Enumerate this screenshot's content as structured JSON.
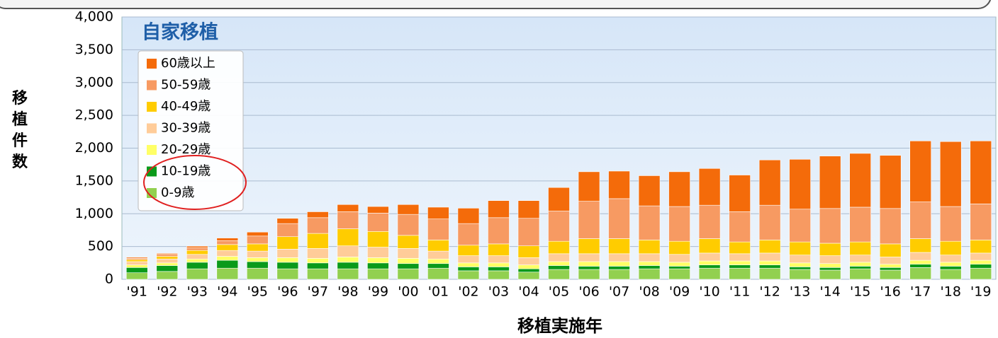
{
  "chart_data": {
    "type": "stacked_bar",
    "title": "自家移植",
    "y_label": "移植件数",
    "x_label": "移植実施年",
    "categories": [
      "'91",
      "'92",
      "'93",
      "'94",
      "'95",
      "'96",
      "'97",
      "'98",
      "'99",
      "'00",
      "'01",
      "'02",
      "'03",
      "'04",
      "'05",
      "'06",
      "'07",
      "'08",
      "'09",
      "'10",
      "'11",
      "'12",
      "'13",
      "'14",
      "'15",
      "'16",
      "'17",
      "'18",
      "'19"
    ],
    "series": [
      {
        "name": "0-9歳",
        "color": "#92d050",
        "values": [
          100,
          120,
          160,
          170,
          170,
          160,
          160,
          160,
          160,
          160,
          170,
          130,
          130,
          110,
          150,
          150,
          150,
          160,
          160,
          170,
          170,
          170,
          150,
          140,
          160,
          140,
          180,
          150,
          170
        ]
      },
      {
        "name": "10-19歳",
        "color": "#0a9a1a",
        "values": [
          80,
          90,
          100,
          120,
          100,
          100,
          90,
          100,
          90,
          80,
          70,
          60,
          60,
          50,
          60,
          50,
          50,
          50,
          40,
          50,
          50,
          50,
          40,
          40,
          40,
          40,
          50,
          50,
          60
        ]
      },
      {
        "name": "20-29歳",
        "color": "#ffff66",
        "values": [
          40,
          40,
          50,
          60,
          60,
          70,
          70,
          80,
          80,
          80,
          70,
          60,
          60,
          60,
          60,
          70,
          70,
          60,
          60,
          60,
          60,
          60,
          60,
          60,
          60,
          50,
          60,
          60,
          60
        ]
      },
      {
        "name": "30-39歳",
        "color": "#ffcc99",
        "values": [
          50,
          60,
          70,
          90,
          100,
          130,
          150,
          170,
          160,
          150,
          120,
          110,
          110,
          110,
          120,
          120,
          120,
          120,
          120,
          120,
          110,
          120,
          120,
          120,
          110,
          110,
          120,
          110,
          110
        ]
      },
      {
        "name": "40-49歳",
        "color": "#ffcc00",
        "values": [
          30,
          40,
          60,
          90,
          110,
          190,
          230,
          260,
          240,
          200,
          170,
          160,
          180,
          180,
          190,
          230,
          230,
          210,
          200,
          220,
          180,
          200,
          200,
          190,
          200,
          200,
          210,
          210,
          200
        ]
      },
      {
        "name": "50-59歳",
        "color": "#f79a62",
        "values": [
          20,
          30,
          40,
          60,
          120,
          200,
          240,
          260,
          280,
          320,
          320,
          330,
          400,
          420,
          460,
          570,
          610,
          520,
          530,
          510,
          460,
          530,
          500,
          530,
          530,
          540,
          560,
          530,
          550
        ]
      },
      {
        "name": "60歳以上",
        "color": "#f46b0a",
        "values": [
          15,
          15,
          25,
          40,
          60,
          80,
          90,
          110,
          100,
          150,
          180,
          235,
          260,
          270,
          360,
          450,
          420,
          460,
          530,
          560,
          560,
          690,
          760,
          800,
          820,
          810,
          930,
          990,
          960
        ]
      }
    ],
    "ylim": [
      0,
      4000
    ],
    "yticks": [
      0,
      500,
      {
        "value": 1000,
        "label": "1,000"
      },
      {
        "value": 1500,
        "label": "1,500"
      },
      {
        "value": 2000,
        "label": "2,000"
      },
      {
        "value": 2500,
        "label": "2,500"
      },
      {
        "value": 3000,
        "label": "3,000"
      },
      {
        "value": 3500,
        "label": "3,500"
      },
      {
        "value": 4000,
        "label": "4,000"
      }
    ],
    "grid": true
  }
}
